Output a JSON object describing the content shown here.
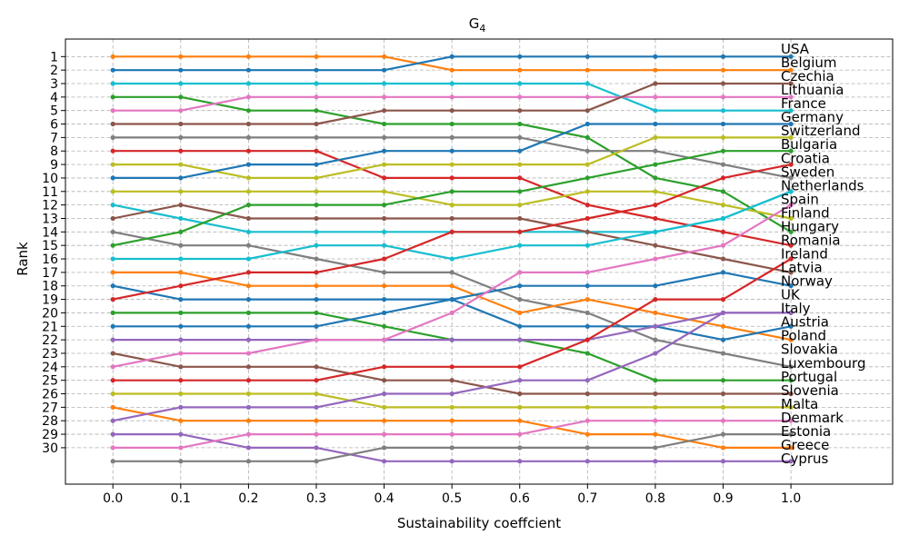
{
  "chart_data": {
    "type": "line",
    "title_base": "G",
    "title_sub": "4",
    "xlabel": "Sustainability coeffcient",
    "ylabel": "Rank",
    "x": [
      0.0,
      0.1,
      0.2,
      0.3,
      0.4,
      0.5,
      0.6,
      0.7,
      0.8,
      0.9,
      1.0
    ],
    "x_tick_labels": [
      "0.0",
      "0.1",
      "0.2",
      "0.3",
      "0.4",
      "0.5",
      "0.6",
      "0.7",
      "0.8",
      "0.9",
      "1.0"
    ],
    "y_ticks": [
      1,
      2,
      3,
      4,
      5,
      6,
      7,
      8,
      9,
      10,
      11,
      12,
      13,
      14,
      15,
      16,
      17,
      18,
      19,
      20,
      21,
      22,
      23,
      24,
      25,
      26,
      27,
      28,
      29,
      30
    ],
    "y_inverted": true,
    "xlim": [
      -0.07,
      1.15
    ],
    "ylim": [
      32.7,
      -0.3
    ],
    "grid": true,
    "right_labels": [
      "USA",
      "Belgium",
      "Czechia",
      "Lithuania",
      "France",
      "Germany",
      "Switzerland",
      "Bulgaria",
      "Croatia",
      "Sweden",
      "Netherlands",
      "Spain",
      "Finland",
      "Hungary",
      "Romania",
      "Ireland",
      "Latvia",
      "Norway",
      "UK",
      "Italy",
      "Austria",
      "Poland",
      "Slovakia",
      "Luxembourg",
      "Portugal",
      "Slovenia",
      "Malta",
      "Denmark",
      "Estonia",
      "Greece",
      "Cyprus"
    ],
    "series": [
      {
        "color": "#ff7f0e",
        "values": [
          1,
          1,
          1,
          1,
          1,
          2,
          2,
          2,
          2,
          2,
          2
        ]
      },
      {
        "color": "#1f77b4",
        "values": [
          2,
          2,
          2,
          2,
          2,
          1,
          1,
          1,
          1,
          1,
          1
        ]
      },
      {
        "color": "#17becf",
        "values": [
          3,
          3,
          3,
          3,
          3,
          3,
          3,
          3,
          5,
          5,
          5
        ]
      },
      {
        "color": "#2ca02c",
        "values": [
          4,
          4,
          5,
          5,
          6,
          6,
          6,
          7,
          10,
          11,
          14
        ]
      },
      {
        "color": "#e377c2",
        "values": [
          5,
          5,
          4,
          4,
          4,
          4,
          4,
          4,
          4,
          4,
          4
        ]
      },
      {
        "color": "#8c564b",
        "values": [
          6,
          6,
          6,
          6,
          5,
          5,
          5,
          5,
          3,
          3,
          3
        ]
      },
      {
        "color": "#7f7f7f",
        "values": [
          7,
          7,
          7,
          7,
          7,
          7,
          7,
          8,
          8,
          9,
          10
        ]
      },
      {
        "color": "#d62728",
        "values": [
          8,
          8,
          8,
          8,
          10,
          10,
          10,
          12,
          13,
          14,
          15
        ]
      },
      {
        "color": "#bcbd22",
        "values": [
          9,
          9,
          10,
          10,
          9,
          9,
          9,
          9,
          7,
          7,
          7
        ]
      },
      {
        "color": "#1f77b4",
        "values": [
          10,
          10,
          9,
          9,
          8,
          8,
          8,
          6,
          6,
          6,
          6
        ]
      },
      {
        "color": "#bcbd22",
        "values": [
          11,
          11,
          11,
          11,
          11,
          12,
          12,
          11,
          11,
          12,
          13
        ]
      },
      {
        "color": "#17becf",
        "values": [
          12,
          13,
          14,
          14,
          14,
          14,
          14,
          14,
          14,
          13,
          11
        ]
      },
      {
        "color": "#8c564b",
        "values": [
          13,
          12,
          13,
          13,
          13,
          13,
          13,
          14,
          15,
          16,
          17
        ]
      },
      {
        "color": "#7f7f7f",
        "values": [
          14,
          15,
          15,
          16,
          17,
          17,
          19,
          20,
          22,
          23,
          24
        ]
      },
      {
        "color": "#2ca02c",
        "values": [
          15,
          14,
          12,
          12,
          12,
          11,
          11,
          10,
          9,
          8,
          8
        ]
      },
      {
        "color": "#17becf",
        "values": [
          16,
          16,
          16,
          15,
          15,
          16,
          15,
          15,
          14,
          13,
          11
        ]
      },
      {
        "color": "#ff7f0e",
        "values": [
          17,
          17,
          18,
          18,
          18,
          18,
          20,
          19,
          20,
          21,
          22
        ]
      },
      {
        "color": "#1f77b4",
        "values": [
          18,
          19,
          19,
          19,
          19,
          19,
          18,
          18,
          18,
          17,
          18
        ]
      },
      {
        "color": "#d62728",
        "values": [
          19,
          18,
          17,
          17,
          16,
          14,
          14,
          13,
          12,
          10,
          9
        ]
      },
      {
        "color": "#2ca02c",
        "values": [
          20,
          20,
          20,
          20,
          21,
          22,
          22,
          23,
          25,
          25,
          25
        ]
      },
      {
        "color": "#1f77b4",
        "values": [
          21,
          21,
          21,
          21,
          20,
          19,
          21,
          21,
          21,
          22,
          21
        ]
      },
      {
        "color": "#9467bd",
        "values": [
          22,
          22,
          22,
          22,
          22,
          22,
          22,
          22,
          21,
          20,
          20
        ]
      },
      {
        "color": "#8c564b",
        "values": [
          23,
          24,
          24,
          24,
          25,
          25,
          26,
          26,
          26,
          26,
          26
        ]
      },
      {
        "color": "#e377c2",
        "values": [
          24,
          23,
          23,
          22,
          22,
          20,
          17,
          17,
          16,
          15,
          12
        ]
      },
      {
        "color": "#d62728",
        "values": [
          25,
          25,
          25,
          25,
          24,
          24,
          24,
          22,
          19,
          19,
          16
        ]
      },
      {
        "color": "#bcbd22",
        "values": [
          26,
          26,
          26,
          26,
          27,
          27,
          27,
          27,
          27,
          27,
          27
        ]
      },
      {
        "color": "#ff7f0e",
        "values": [
          27,
          28,
          28,
          28,
          28,
          28,
          28,
          29,
          29,
          30,
          30
        ]
      },
      {
        "color": "#9467bd",
        "values": [
          28,
          27,
          27,
          27,
          26,
          26,
          25,
          25,
          23,
          20,
          20
        ]
      },
      {
        "color": "#9467bd",
        "values": [
          29,
          29,
          30,
          30,
          31,
          31,
          31,
          31,
          31,
          31,
          31
        ]
      },
      {
        "color": "#e377c2",
        "values": [
          30,
          30,
          29,
          29,
          29,
          29,
          29,
          28,
          28,
          28,
          28
        ]
      },
      {
        "color": "#7f7f7f",
        "values": [
          31,
          31,
          31,
          31,
          30,
          30,
          30,
          30,
          30,
          29,
          29
        ]
      }
    ]
  }
}
